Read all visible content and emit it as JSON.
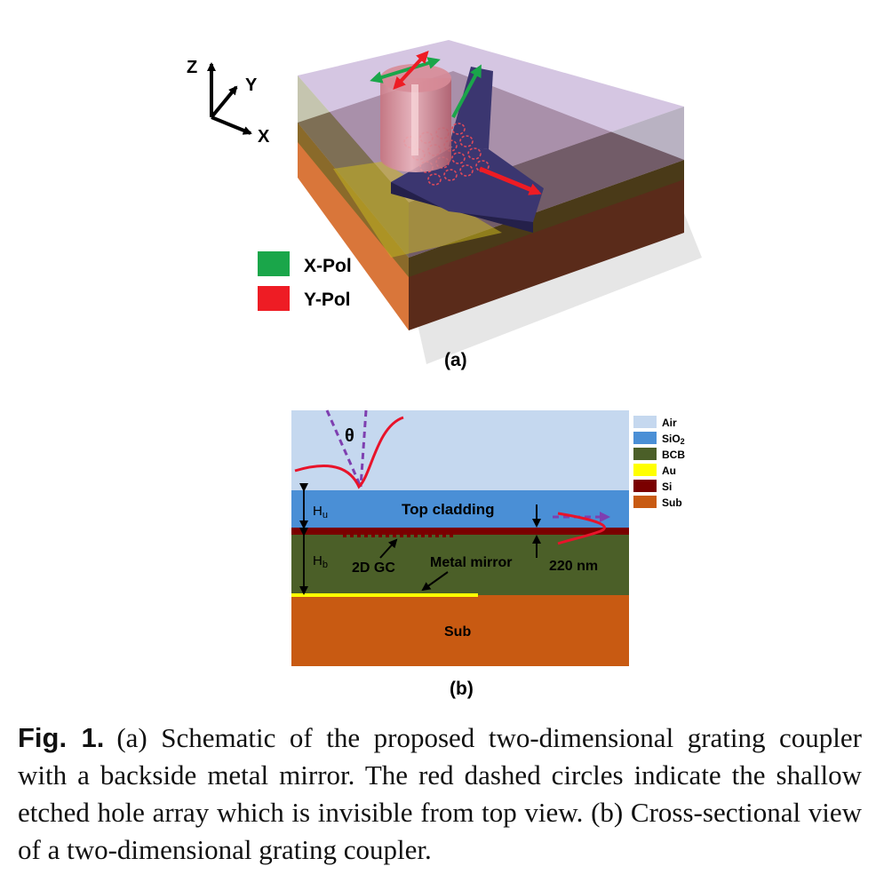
{
  "panel_a": {
    "label": "(a)",
    "axes": {
      "z": "Z",
      "y": "Y",
      "x": "X"
    },
    "legend": [
      {
        "label": "X-Pol",
        "color": "#1aa64a"
      },
      {
        "label": "Y-Pol",
        "color": "#ee1c24"
      }
    ]
  },
  "panel_b": {
    "label": "(b)",
    "theta": "θ",
    "hu_main": "H",
    "hu_sub": "u",
    "hb_main": "H",
    "hb_sub": "b",
    "top_cladding": "Top cladding",
    "grating": "2D GC",
    "mirror": "Metal mirror",
    "thickness": "220 nm",
    "substrate": "Sub",
    "legend": [
      {
        "label": "Air",
        "color": "#c5d8ef"
      },
      {
        "label": "SiO2",
        "main": "SiO",
        "sub": "2",
        "color": "#4a8fd6"
      },
      {
        "label": "BCB",
        "color": "#4b5f28"
      },
      {
        "label": "Au",
        "color": "#ffff00"
      },
      {
        "label": "Si",
        "color": "#7a0000"
      },
      {
        "label": "Sub",
        "color": "#c85a12"
      }
    ]
  },
  "caption": {
    "fig_label": "Fig. 1.",
    "text": "(a) Schematic of the proposed two-dimensional grating coupler with a backside metal mirror. The red dashed circles indicate the shallow etched hole array which is invisible from top view. (b) Cross-sectional view of a two-dimensional grating coupler."
  }
}
